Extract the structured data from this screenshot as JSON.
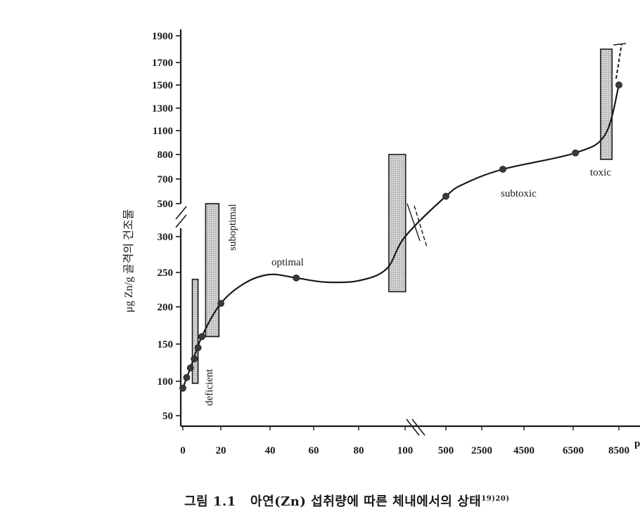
{
  "chart_data": {
    "type": "line",
    "title": "",
    "xlabel": "",
    "ylabel": "μg Zn/g 골격의 건조물",
    "x_ticks": [
      "0",
      "20",
      "40",
      "60",
      "80",
      "100",
      "500",
      "2500",
      "4500",
      "6500",
      "8500"
    ],
    "y_ticks": [
      "50",
      "100",
      "150",
      "200",
      "250",
      "300",
      "500",
      "700",
      "800",
      "1100",
      "1300",
      "1500",
      "1700",
      "1900"
    ],
    "x_axis_end_fragment": "p",
    "axis_breaks": "both axes broken (double slash)",
    "series": [
      {
        "points": [
          {
            "x": 0,
            "y": 90
          },
          {
            "x": 2,
            "y": 105
          },
          {
            "x": 4,
            "y": 118
          },
          {
            "x": 6,
            "y": 130
          },
          {
            "x": 8,
            "y": 145
          },
          {
            "x": 10,
            "y": 160
          },
          {
            "x": 20,
            "y": 205
          },
          {
            "x": 52,
            "y": 242
          },
          {
            "x": 500,
            "y": 560
          },
          {
            "x": 3500,
            "y": 740
          },
          {
            "x": 6600,
            "y": 820
          },
          {
            "x": 8500,
            "y": 1500
          }
        ]
      }
    ],
    "regions": [
      {
        "label": "deficient",
        "x_range": [
          5,
          8
        ],
        "y_range": [
          97,
          240
        ]
      },
      {
        "label": "suboptimal",
        "x_range": [
          12,
          19
        ],
        "y_range": [
          160,
          500
        ]
      },
      {
        "label": "optimal",
        "x": 45,
        "y": 258
      },
      {
        "label": "",
        "x_range": [
          93,
          105
        ],
        "y_range": [
          222,
          800
        ]
      },
      {
        "label": "subtoxic",
        "x": 4000,
        "y": 690
      },
      {
        "label": "toxic",
        "x_range": [
          7700,
          8200
        ],
        "y_range": [
          780,
          1800
        ]
      }
    ]
  },
  "caption": {
    "figure_label": "그림 1.1",
    "text": "아연(Zn) 섭취량에 따른 체내에서의 상태",
    "refs": "19)20)"
  }
}
